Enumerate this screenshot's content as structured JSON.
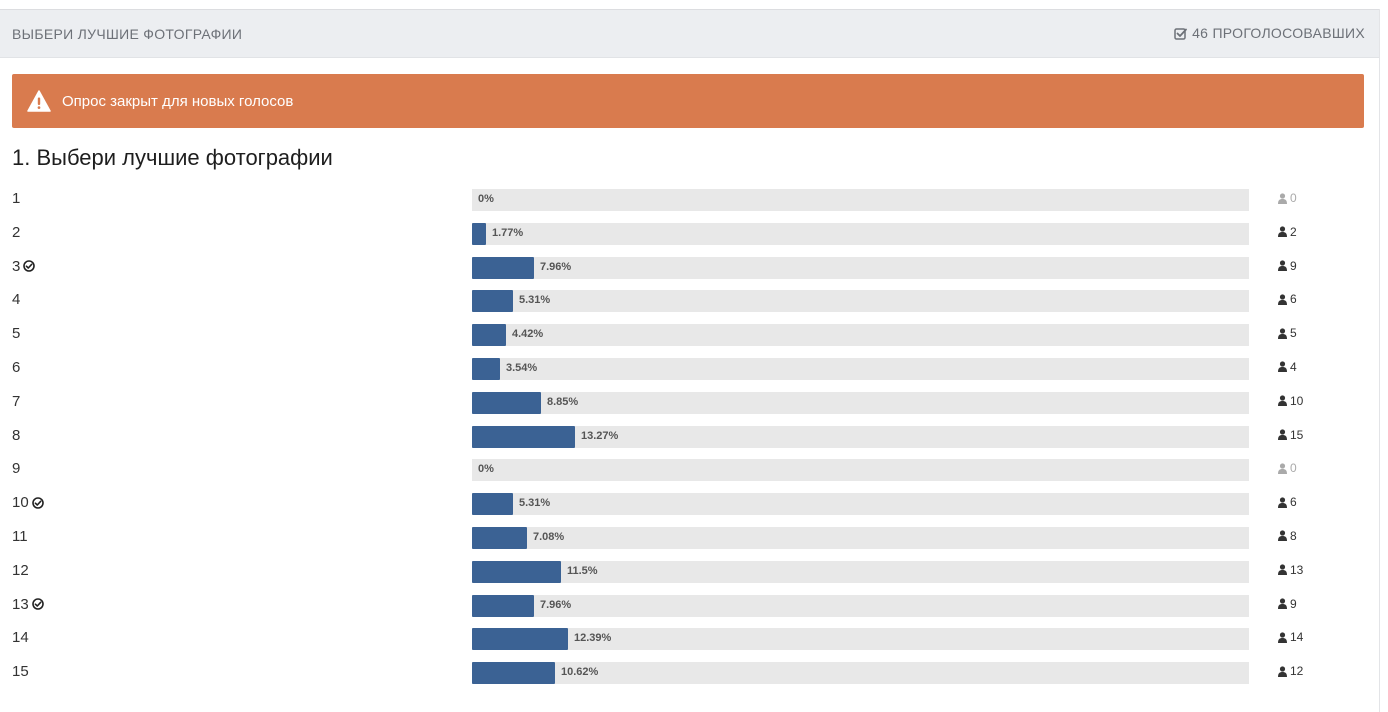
{
  "header": {
    "title": "ВЫБЕРИ ЛУЧШИЕ ФОТОГРАФИИ",
    "voters": "46 ПРОГОЛОСОВАВШИХ",
    "voters_icon": "check-square-icon"
  },
  "alert": {
    "icon": "warning-triangle-icon",
    "text": "Опрос закрыт для новых голосов",
    "color": "#d97b4e"
  },
  "question": {
    "title": "1. Выбери лучшие фотографии",
    "bar_color": "#3b6294",
    "options": [
      {
        "label": "1",
        "percent": "0%",
        "fraction": 0.0,
        "votes": "0",
        "checked": false
      },
      {
        "label": "2",
        "percent": "1.77%",
        "fraction": 0.0177,
        "votes": "2",
        "checked": false
      },
      {
        "label": "3",
        "percent": "7.96%",
        "fraction": 0.0796,
        "votes": "9",
        "checked": true
      },
      {
        "label": "4",
        "percent": "5.31%",
        "fraction": 0.0531,
        "votes": "6",
        "checked": false
      },
      {
        "label": "5",
        "percent": "4.42%",
        "fraction": 0.0442,
        "votes": "5",
        "checked": false
      },
      {
        "label": "6",
        "percent": "3.54%",
        "fraction": 0.0354,
        "votes": "4",
        "checked": false
      },
      {
        "label": "7",
        "percent": "8.85%",
        "fraction": 0.0885,
        "votes": "10",
        "checked": false
      },
      {
        "label": "8",
        "percent": "13.27%",
        "fraction": 0.1327,
        "votes": "15",
        "checked": false
      },
      {
        "label": "9",
        "percent": "0%",
        "fraction": 0.0,
        "votes": "0",
        "checked": false
      },
      {
        "label": "10",
        "percent": "5.31%",
        "fraction": 0.0531,
        "votes": "6",
        "checked": true
      },
      {
        "label": "11",
        "percent": "7.08%",
        "fraction": 0.0708,
        "votes": "8",
        "checked": false
      },
      {
        "label": "12",
        "percent": "11.5%",
        "fraction": 0.115,
        "votes": "13",
        "checked": false
      },
      {
        "label": "13",
        "percent": "7.96%",
        "fraction": 0.0796,
        "votes": "9",
        "checked": true
      },
      {
        "label": "14",
        "percent": "12.39%",
        "fraction": 0.1239,
        "votes": "14",
        "checked": false
      },
      {
        "label": "15",
        "percent": "10.62%",
        "fraction": 0.1062,
        "votes": "12",
        "checked": false
      }
    ]
  }
}
